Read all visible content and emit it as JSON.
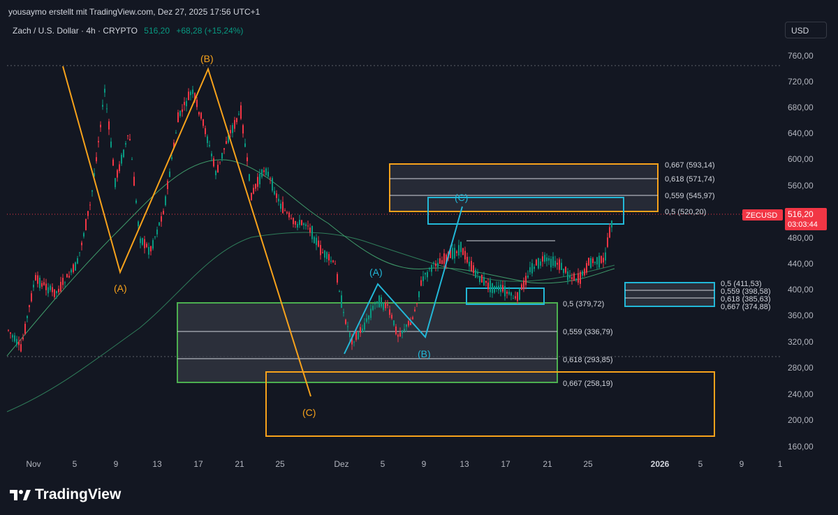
{
  "header": {
    "attribution": "yousaymo erstellt mit TradingView.com, Dez 27, 2025 17:56 UTC+1",
    "symbol_title": "Zach / U.S. Dollar · 4h · CRYPTO",
    "last_price": "516,20",
    "change": "+68,28 (+15,24%)",
    "currency_button": "USD"
  },
  "price_axis": {
    "labels": [
      "760,00",
      "720,00",
      "680,00",
      "640,00",
      "600,00",
      "560,00",
      "520,00",
      "480,00",
      "440,00",
      "400,00",
      "360,00",
      "320,00",
      "280,00",
      "240,00",
      "200,00",
      "160,00"
    ],
    "ticker_badge": "ZECUSD",
    "price_badge": "516,20",
    "countdown": "03:03:44"
  },
  "time_axis": {
    "labels": [
      "Nov",
      "5",
      "9",
      "13",
      "17",
      "21",
      "25",
      "Dez",
      "5",
      "9",
      "13",
      "17",
      "21",
      "25",
      "2026",
      "5",
      "9",
      "1"
    ]
  },
  "fib_labels_top": [
    "0,667 (593,14)",
    "0,618 (571,74)",
    "0,559 (545,97)",
    "0,5 (520,20)"
  ],
  "fib_labels_bottom": [
    "0,5 (379,72)",
    "0,559 (336,79)",
    "0,618 (293,85)",
    "0,667 (258,19)"
  ],
  "fib_labels_right": [
    "0,5 (411,53)",
    "0,559 (398,58)",
    "0,618 (385,63)",
    "0,667 (374,88)"
  ],
  "wave_labels_orange": [
    "(A)",
    "(B)",
    "(C)"
  ],
  "wave_labels_cyan": [
    "(A)",
    "(B)",
    "(C)"
  ],
  "footer": {
    "brand": "TradingView"
  },
  "colors": {
    "background": "#131722",
    "orange": "#f7a21b",
    "cyan": "#22b8d8",
    "green": "#4caf50",
    "up": "#089981",
    "down": "#f23645"
  }
}
